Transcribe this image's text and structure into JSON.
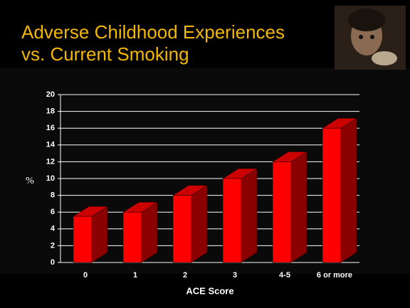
{
  "chart_data": {
    "type": "bar",
    "title": "Adverse Childhood Experiences vs. Current Smoking",
    "x_label": "ACE Score",
    "y_label": "%",
    "categories": [
      "0",
      "1",
      "2",
      "3",
      "4-5",
      "6 or more"
    ],
    "values": [
      5.5,
      6,
      8,
      10,
      12,
      16
    ],
    "color": "#ff0000",
    "side_color": "#8b0000",
    "top_color": "#cc0000",
    "ylim": [
      0,
      20
    ],
    "yticks": [
      0,
      2,
      4,
      6,
      8,
      10,
      12,
      14,
      16,
      18,
      20
    ],
    "grid": true
  }
}
